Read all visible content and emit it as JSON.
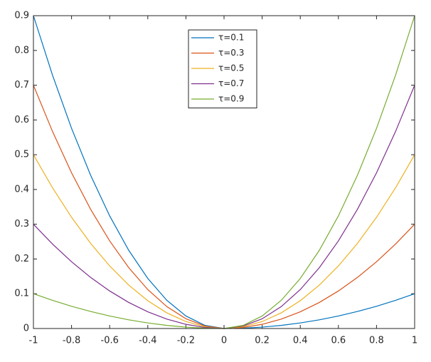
{
  "chart_data": {
    "type": "line",
    "x": [
      -1,
      -0.9,
      -0.8,
      -0.7,
      -0.6,
      -0.5,
      -0.4,
      -0.3,
      -0.2,
      -0.1,
      0,
      0.1,
      0.2,
      0.3,
      0.4,
      0.5,
      0.6,
      0.7,
      0.8,
      0.9,
      1
    ],
    "series": [
      {
        "name": "τ=0.1",
        "color": "#0072BD",
        "values": [
          0.9,
          0.729,
          0.576,
          0.441,
          0.324,
          0.225,
          0.144,
          0.081,
          0.036,
          0.009,
          0,
          0.001,
          0.004,
          0.009,
          0.016,
          0.025,
          0.036,
          0.049,
          0.064,
          0.081,
          0.1
        ]
      },
      {
        "name": "τ=0.3",
        "color": "#D95319",
        "values": [
          0.7,
          0.567,
          0.448,
          0.343,
          0.252,
          0.175,
          0.112,
          0.063,
          0.028,
          0.007,
          0,
          0.003,
          0.012,
          0.027,
          0.048,
          0.075,
          0.108,
          0.147,
          0.192,
          0.243,
          0.3
        ]
      },
      {
        "name": "τ=0.5",
        "color": "#EDB120",
        "values": [
          0.5,
          0.405,
          0.32,
          0.245,
          0.18,
          0.125,
          0.08,
          0.045,
          0.02,
          0.005,
          0,
          0.005,
          0.02,
          0.045,
          0.08,
          0.125,
          0.18,
          0.245,
          0.32,
          0.405,
          0.5
        ]
      },
      {
        "name": "τ=0.7",
        "color": "#7E2F8E",
        "values": [
          0.3,
          0.243,
          0.192,
          0.147,
          0.108,
          0.075,
          0.048,
          0.027,
          0.012,
          0.003,
          0,
          0.007,
          0.028,
          0.063,
          0.112,
          0.175,
          0.252,
          0.343,
          0.448,
          0.567,
          0.7
        ]
      },
      {
        "name": "τ=0.9",
        "color": "#77AC30",
        "values": [
          0.1,
          0.081,
          0.064,
          0.049,
          0.036,
          0.025,
          0.016,
          0.009,
          0.004,
          0.001,
          0,
          0.009,
          0.036,
          0.081,
          0.144,
          0.225,
          0.324,
          0.441,
          0.576,
          0.729,
          0.9
        ]
      }
    ],
    "xlim": [
      -1,
      1
    ],
    "xticks": [
      -1,
      -0.8,
      -0.6,
      -0.4,
      -0.2,
      0,
      0.2,
      0.4,
      0.6,
      0.8,
      1
    ],
    "ylim": [
      0,
      0.9
    ],
    "yticks": [
      0,
      0.1,
      0.2,
      0.3,
      0.4,
      0.5,
      0.6,
      0.7,
      0.8,
      0.9
    ],
    "grid": false,
    "legend": "top"
  }
}
